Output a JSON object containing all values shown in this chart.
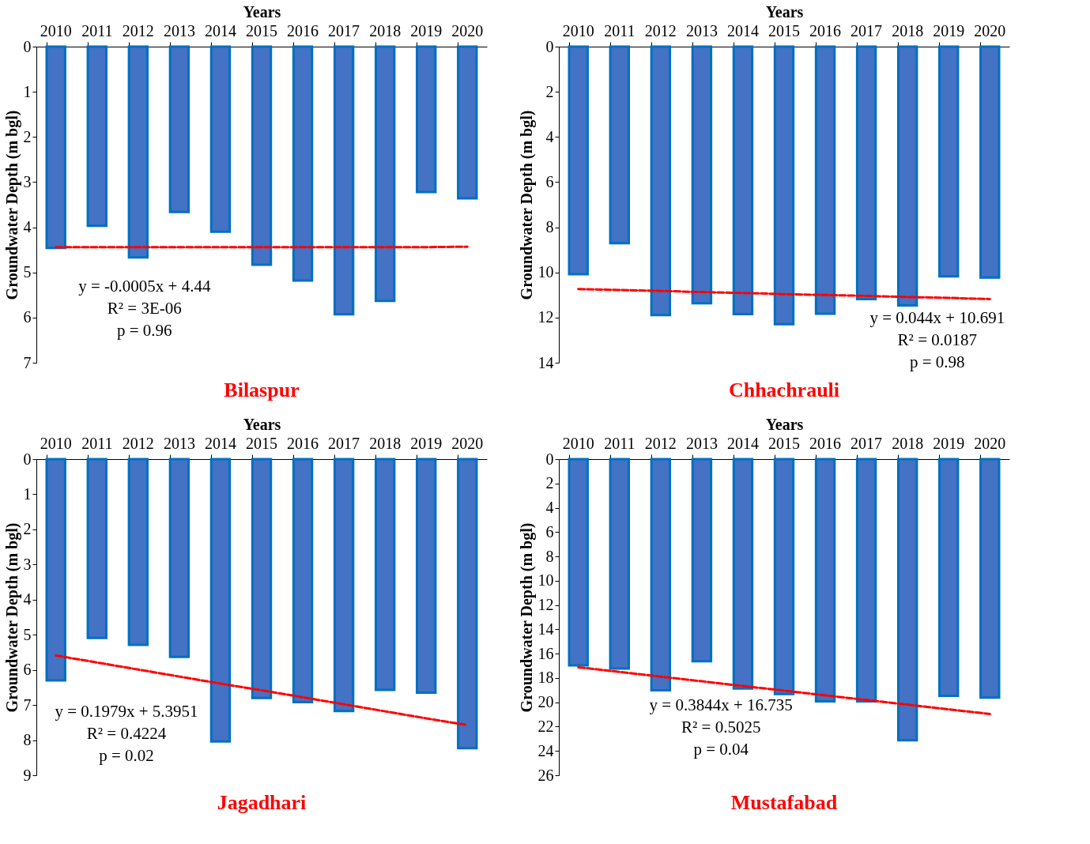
{
  "chart_data": [
    {
      "type": "bar",
      "title": "Bilaspur",
      "xlabel": "Years",
      "ylabel": "Groundwater Depth (m bgl)",
      "categories": [
        "2010",
        "2011",
        "2012",
        "2013",
        "2014",
        "2015",
        "2016",
        "2017",
        "2018",
        "2019",
        "2020"
      ],
      "series": [
        {
          "color": "#4472c4",
          "values": [
            4.46,
            3.97,
            4.67,
            3.66,
            4.1,
            4.83,
            5.18,
            5.93,
            5.63,
            3.22,
            3.36
          ]
        },
        {
          "type": "line",
          "color": "#ff0000",
          "line_style": "dashed",
          "values": [
            4.44,
            4.44,
            4.44,
            4.44,
            4.44,
            4.44,
            4.44,
            4.44,
            4.44,
            4.44,
            4.43
          ]
        }
      ],
      "ylim": [
        7,
        0
      ],
      "yticks": [
        0,
        1,
        2,
        3,
        4,
        5,
        6,
        7
      ],
      "annotations": [
        "y = -0.0005x + 4.44",
        "R² = 3E-06",
        "p = 0.96"
      ]
    },
    {
      "type": "bar",
      "title": "Chhachrauli",
      "xlabel": "Years",
      "ylabel": "Groundwater Depth (m bgl)",
      "categories": [
        "2010",
        "2011",
        "2012",
        "2013",
        "2014",
        "2015",
        "2016",
        "2017",
        "2018",
        "2019",
        "2020"
      ],
      "series": [
        {
          "color": "#4472c4",
          "values": [
            10.08,
            8.71,
            11.89,
            11.37,
            11.85,
            12.29,
            11.83,
            11.18,
            11.46,
            10.18,
            10.23
          ]
        },
        {
          "type": "line",
          "color": "#ff0000",
          "line_style": "dashed",
          "values": [
            10.74,
            10.78,
            10.82,
            10.87,
            10.91,
            10.96,
            11.0,
            11.04,
            11.09,
            11.13,
            11.18
          ]
        }
      ],
      "ylim": [
        14,
        0
      ],
      "yticks": [
        0,
        2,
        4,
        6,
        8,
        10,
        12,
        14
      ],
      "annotations": [
        "y = 0.044x + 10.691",
        "R² = 0.0187",
        "p = 0.98"
      ]
    },
    {
      "type": "bar",
      "title": "Jagadhari",
      "xlabel": "Years",
      "ylabel": "Groundwater Depth (m bgl)",
      "categories": [
        "2010",
        "2011",
        "2012",
        "2013",
        "2014",
        "2015",
        "2016",
        "2017",
        "2018",
        "2019",
        "2020"
      ],
      "series": [
        {
          "color": "#4472c4",
          "values": [
            6.3,
            5.09,
            5.29,
            5.63,
            8.04,
            6.8,
            6.92,
            7.17,
            6.57,
            6.65,
            8.23
          ]
        },
        {
          "type": "line",
          "color": "#ff0000",
          "line_style": "dashed",
          "values": [
            5.59,
            5.79,
            5.99,
            6.19,
            6.39,
            6.58,
            6.78,
            6.98,
            7.18,
            7.38,
            7.57
          ]
        }
      ],
      "ylim": [
        9,
        0
      ],
      "yticks": [
        0,
        1,
        2,
        3,
        4,
        5,
        6,
        7,
        8,
        9
      ],
      "annotations": [
        "y = 0.1979x + 5.3951",
        "R² = 0.4224",
        "p = 0.02"
      ]
    },
    {
      "type": "bar",
      "title": "Mustafabad",
      "xlabel": "Years",
      "ylabel": "Groundwater Depth (m bgl)",
      "categories": [
        "2010",
        "2011",
        "2012",
        "2013",
        "2014",
        "2015",
        "2016",
        "2017",
        "2018",
        "2019",
        "2020"
      ],
      "series": [
        {
          "color": "#4472c4",
          "values": [
            16.96,
            17.22,
            19.01,
            16.62,
            18.87,
            19.32,
            19.92,
            19.92,
            23.13,
            19.47,
            19.61
          ]
        },
        {
          "type": "line",
          "color": "#ff0000",
          "line_style": "dashed",
          "values": [
            17.12,
            17.5,
            17.89,
            18.27,
            18.66,
            19.04,
            19.43,
            19.81,
            20.19,
            20.58,
            20.96
          ]
        }
      ],
      "ylim": [
        26,
        0
      ],
      "yticks": [
        0,
        2,
        4,
        6,
        8,
        10,
        12,
        14,
        16,
        18,
        20,
        22,
        24,
        26
      ],
      "annotations": [
        "y = 0.3844x + 16.735",
        "R² = 0.5025",
        "p = 0.04"
      ]
    }
  ]
}
